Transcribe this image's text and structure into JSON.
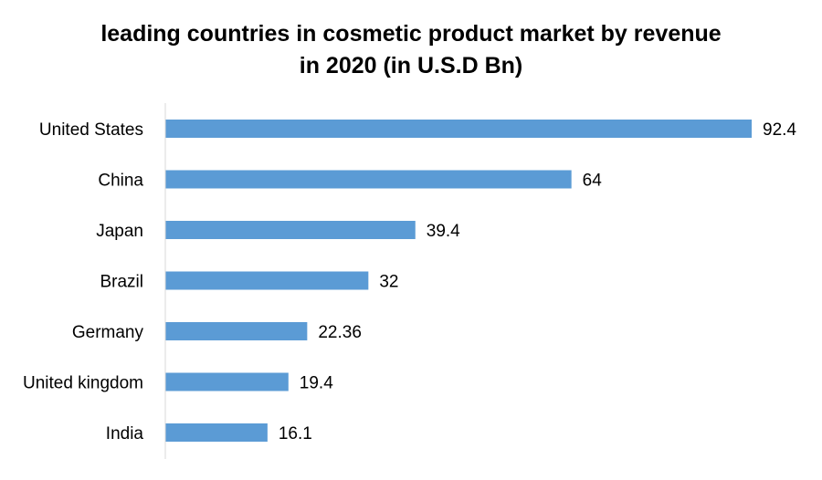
{
  "chart_data": {
    "type": "bar",
    "orientation": "horizontal",
    "title_line1": "leading countries in cosmetic product market by revenue",
    "title_line2": "in 2020 (in U.S.D Bn)",
    "categories": [
      "United States",
      "China",
      "Japan",
      "Brazil",
      "Germany",
      "United kingdom",
      "India"
    ],
    "values": [
      92.4,
      64,
      39.4,
      32,
      22.36,
      19.4,
      16.1
    ],
    "value_labels": [
      "92.4",
      "64",
      "39.4",
      "32",
      "22.36",
      "19.4",
      "16.1"
    ],
    "xlim": [
      0,
      100
    ],
    "grid": false,
    "legend": "none",
    "bar_color": "#5B9BD5",
    "axis_color": "#D9D9D9"
  }
}
